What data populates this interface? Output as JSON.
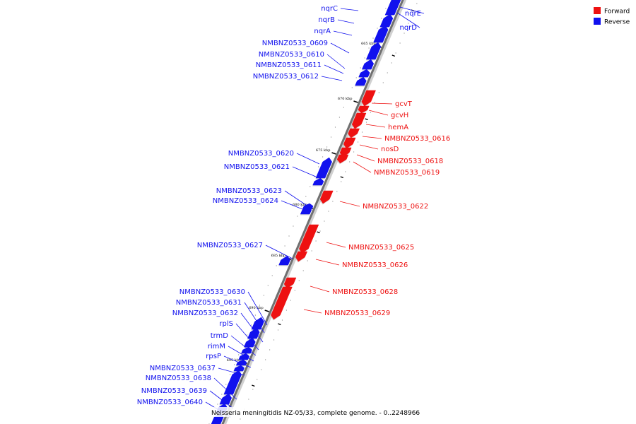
{
  "legend": [
    {
      "label": "Forward",
      "color": "#ee1111"
    },
    {
      "label": "Reverse",
      "color": "#1111ee"
    }
  ],
  "caption": "Neisseria meningitidis NZ-05/33, complete genome. - 0..2248966",
  "ticks": [
    "665 kbp",
    "670 kbp",
    "675 kbp",
    "680 kbp",
    "685 kbp",
    "690 kbp",
    "695 kbp"
  ],
  "genes": [
    {
      "label": "nqrE",
      "strand": "reverse"
    },
    {
      "label": "nqrD",
      "strand": "reverse"
    },
    {
      "label": "nqrC",
      "strand": "reverse"
    },
    {
      "label": "nqrB",
      "strand": "reverse"
    },
    {
      "label": "nqrA",
      "strand": "reverse"
    },
    {
      "label": "NMBNZ0533_0609",
      "strand": "reverse"
    },
    {
      "label": "NMBNZ0533_0610",
      "strand": "reverse"
    },
    {
      "label": "NMBNZ0533_0611",
      "strand": "reverse"
    },
    {
      "label": "NMBNZ0533_0612",
      "strand": "reverse"
    },
    {
      "label": "gcvT",
      "strand": "forward"
    },
    {
      "label": "gcvH",
      "strand": "forward"
    },
    {
      "label": "hemA",
      "strand": "forward"
    },
    {
      "label": "NMBNZ0533_0616",
      "strand": "forward"
    },
    {
      "label": "nosD",
      "strand": "forward"
    },
    {
      "label": "NMBNZ0533_0618",
      "strand": "forward"
    },
    {
      "label": "NMBNZ0533_0619",
      "strand": "forward"
    },
    {
      "label": "NMBNZ0533_0620",
      "strand": "reverse"
    },
    {
      "label": "NMBNZ0533_0621",
      "strand": "reverse"
    },
    {
      "label": "NMBNZ0533_0622",
      "strand": "forward"
    },
    {
      "label": "NMBNZ0533_0623",
      "strand": "reverse"
    },
    {
      "label": "NMBNZ0533_0624",
      "strand": "reverse"
    },
    {
      "label": "NMBNZ0533_0625",
      "strand": "forward"
    },
    {
      "label": "NMBNZ0533_0626",
      "strand": "forward"
    },
    {
      "label": "NMBNZ0533_0627",
      "strand": "reverse"
    },
    {
      "label": "NMBNZ0533_0628",
      "strand": "forward"
    },
    {
      "label": "NMBNZ0533_0629",
      "strand": "forward"
    },
    {
      "label": "NMBNZ0533_0630",
      "strand": "reverse"
    },
    {
      "label": "NMBNZ0533_0631",
      "strand": "reverse"
    },
    {
      "label": "NMBNZ0533_0632",
      "strand": "reverse"
    },
    {
      "label": "rplS",
      "strand": "reverse"
    },
    {
      "label": "trmD",
      "strand": "reverse"
    },
    {
      "label": "rimM",
      "strand": "reverse"
    },
    {
      "label": "rpsP",
      "strand": "reverse"
    },
    {
      "label": "NMBNZ0533_0637",
      "strand": "reverse"
    },
    {
      "label": "NMBNZ0533_0638",
      "strand": "reverse"
    },
    {
      "label": "NMBNZ0533_0639",
      "strand": "reverse"
    },
    {
      "label": "NMBNZ0533_0640",
      "strand": "reverse"
    }
  ]
}
